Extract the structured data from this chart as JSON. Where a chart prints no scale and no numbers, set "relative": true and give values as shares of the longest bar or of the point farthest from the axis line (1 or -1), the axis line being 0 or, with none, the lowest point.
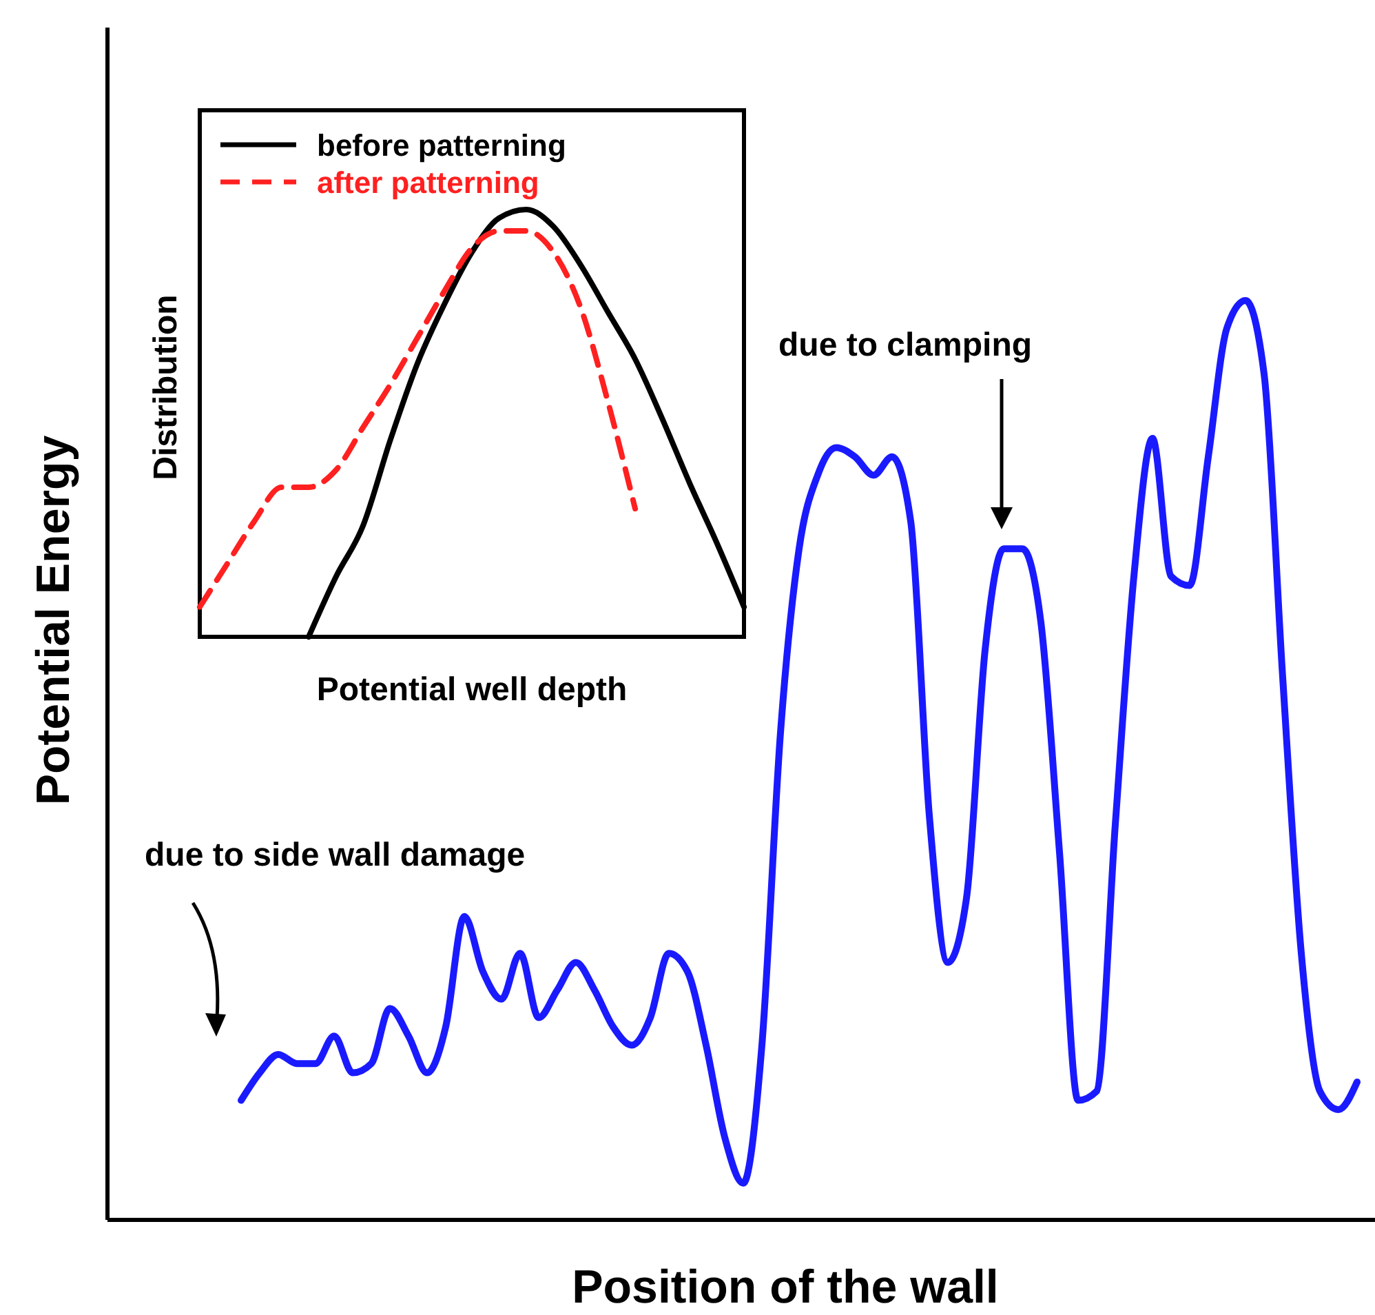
{
  "chart_data": [
    {
      "type": "line",
      "xlabel": "Position of the wall",
      "ylabel": "Potential Energy",
      "relative": true,
      "categories": [
        null,
        null,
        null,
        null,
        null,
        null,
        null,
        null,
        null,
        null,
        null,
        null,
        null,
        null,
        null,
        null,
        null,
        null,
        null,
        null,
        null,
        null,
        null,
        null,
        null,
        null,
        null,
        null,
        null,
        null,
        null,
        null,
        null,
        null,
        null,
        null,
        null,
        null,
        null,
        null,
        null,
        null,
        null,
        null,
        null,
        null,
        null,
        null,
        null,
        null,
        null,
        null,
        null,
        null,
        null,
        null,
        null,
        null,
        null,
        null,
        null
      ],
      "series": [
        {
          "color": "#1a1aff",
          "values": [
            0.13,
            0.16,
            0.18,
            0.17,
            0.17,
            0.2,
            0.16,
            0.17,
            0.23,
            0.2,
            0.16,
            0.21,
            0.33,
            0.27,
            0.24,
            0.29,
            0.22,
            0.25,
            0.28,
            0.25,
            0.21,
            0.19,
            0.22,
            0.29,
            0.27,
            0.19,
            0.09,
            0.04,
            0.19,
            0.53,
            0.73,
            0.81,
            0.84,
            0.83,
            0.81,
            0.83,
            0.76,
            0.44,
            0.28,
            0.35,
            0.62,
            0.73,
            0.73,
            0.65,
            0.4,
            0.13,
            0.14,
            0.43,
            0.7,
            0.85,
            0.7,
            0.69,
            0.83,
            0.97,
            1,
            0.92,
            0.59,
            0.29,
            0.14,
            0.12,
            0.15
          ]
        }
      ],
      "annotations": [
        "due to side wall damage",
        "due to clamping"
      ]
    },
    {
      "type": "line",
      "xlabel": "Potential well depth",
      "ylabel": "Distribution",
      "relative": true,
      "legend": "top left",
      "categories": [
        null,
        null,
        null,
        null,
        null,
        null,
        null,
        null,
        null,
        null,
        null,
        null,
        null,
        null,
        null,
        null,
        null,
        null,
        null,
        null,
        null
      ],
      "series": [
        {
          "name": "before patterning",
          "color": "#000000",
          "line_style": "solid",
          "values": [
            null,
            null,
            null,
            null,
            0,
            0.14,
            0.26,
            0.46,
            0.64,
            0.78,
            0.9,
            0.98,
            1,
            0.96,
            0.87,
            0.76,
            0.65,
            0.51,
            0.36,
            0.22,
            0.07
          ]
        },
        {
          "name": "after patterning",
          "color": "#ff2020",
          "line_style": "dashed",
          "values": [
            0.07,
            0.17,
            0.27,
            0.35,
            0.35,
            0.39,
            0.49,
            0.59,
            0.7,
            0.81,
            0.91,
            0.95,
            0.95,
            0.9,
            0.77,
            0.55,
            0.3,
            null,
            null,
            null,
            null
          ]
        }
      ]
    }
  ]
}
